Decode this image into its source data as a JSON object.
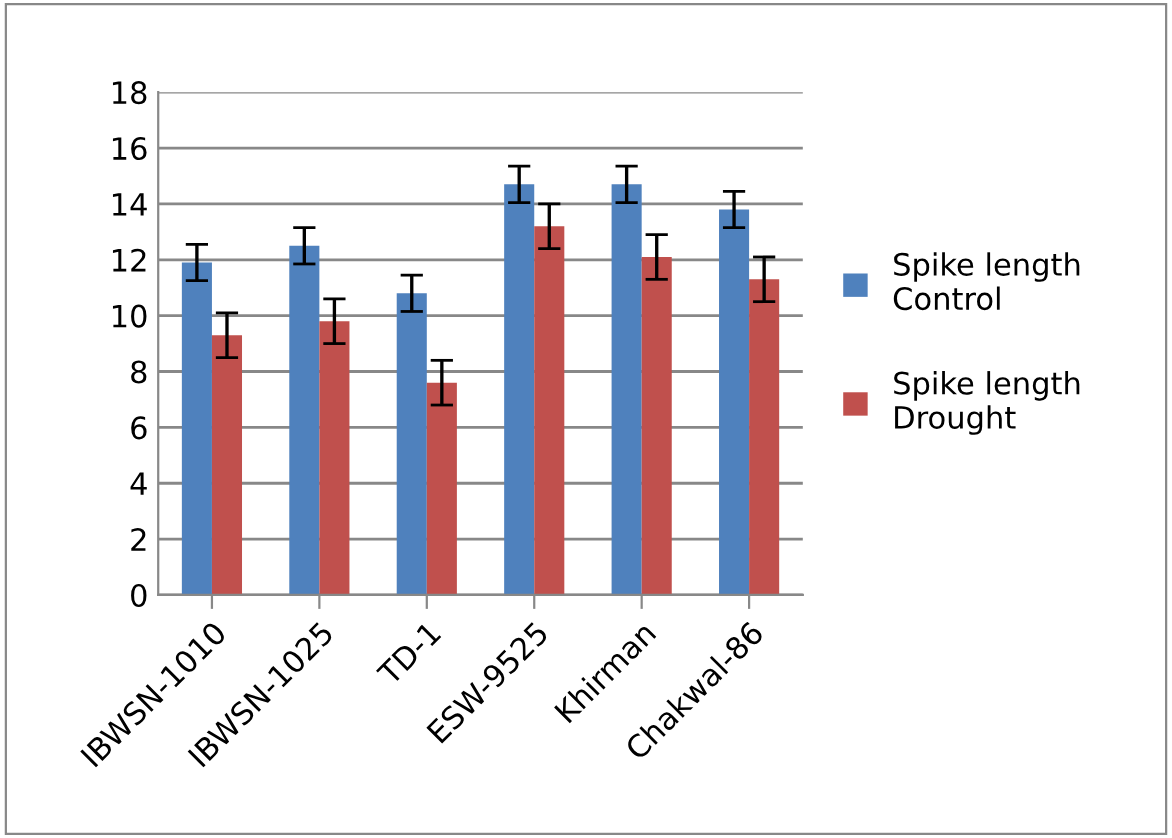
{
  "chart_data": {
    "type": "bar",
    "categories": [
      "IBWSN-1010",
      "IBWSN-1025",
      "TD-1",
      "ESW-9525",
      "Khirman",
      "Chakwal-86"
    ],
    "series": [
      {
        "name": "Spike length Control",
        "color": "#4f81bd",
        "values": [
          11.9,
          12.5,
          10.8,
          14.7,
          14.7,
          13.8
        ],
        "errors": [
          0.65,
          0.65,
          0.65,
          0.65,
          0.65,
          0.65
        ]
      },
      {
        "name": "Spike length Drought",
        "color": "#c0504d",
        "values": [
          9.3,
          9.8,
          7.6,
          13.2,
          12.1,
          11.3
        ],
        "errors": [
          0.8,
          0.8,
          0.8,
          0.8,
          0.8,
          0.8
        ]
      }
    ],
    "ylim": [
      0,
      18
    ],
    "yticks": [
      0,
      2,
      4,
      6,
      8,
      10,
      12,
      14,
      16,
      18
    ],
    "grid": "y",
    "legend": "right"
  }
}
